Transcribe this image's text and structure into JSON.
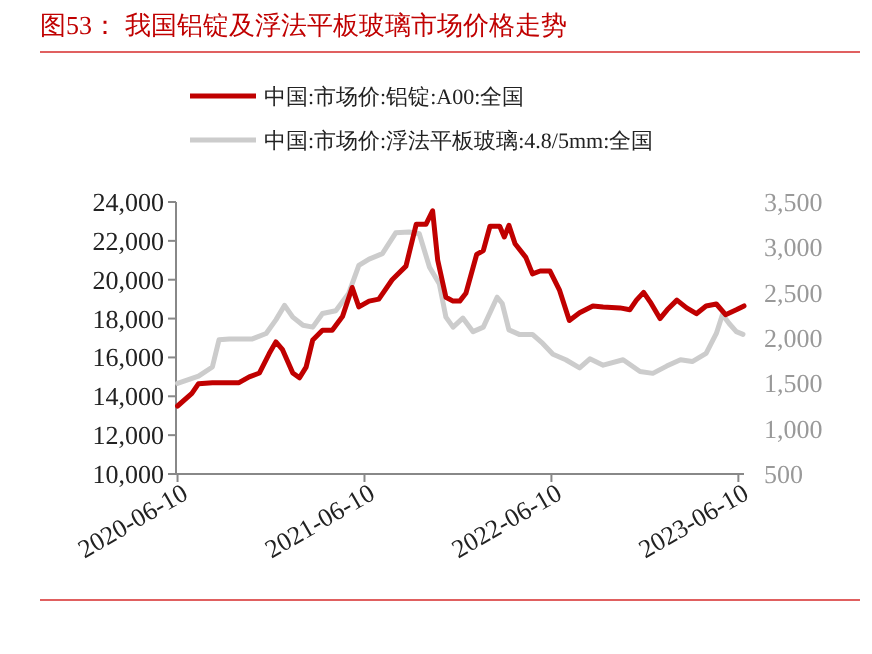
{
  "chart_data": {
    "type": "line",
    "title": "图53：  我国铝锭及浮法平板玻璃市场价格走势",
    "xlim": [
      "2020-06-07",
      "2023-06-21"
    ],
    "xticks": [
      "2020-06-10",
      "2021-06-10",
      "2022-06-10",
      "2023-06-10"
    ],
    "ylim": [
      10000,
      24000
    ],
    "yticks": [
      {
        "value": 10000,
        "label": "10,000"
      },
      {
        "value": 12000,
        "label": "12,000"
      },
      {
        "value": 14000,
        "label": "14,000"
      },
      {
        "value": 16000,
        "label": "16,000"
      },
      {
        "value": 18000,
        "label": "18,000"
      },
      {
        "value": 20000,
        "label": "20,000"
      },
      {
        "value": 22000,
        "label": "22,000"
      },
      {
        "value": 24000,
        "label": "24,000"
      }
    ],
    "y2lim": [
      500,
      3500
    ],
    "y2ticks": [
      500,
      {
        "value": 1000,
        "label": "1,000"
      },
      {
        "value": 1500,
        "label": "1,500"
      },
      {
        "value": 2000,
        "label": "2,000"
      },
      {
        "value": 2500,
        "label": "2,500"
      },
      {
        "value": 3000,
        "label": "3,000"
      },
      {
        "value": 3500,
        "label": "3,500"
      }
    ],
    "legend": "top",
    "grid": false,
    "series": [
      {
        "name": "中国:市场价:铝锭:A00:全国",
        "color": "#c00000",
        "x": [
          "2020-06-10",
          "2020-07-08",
          "2020-07-21",
          "2020-08-17",
          "2020-09-12",
          "2020-10-08",
          "2020-10-28",
          "2020-11-17",
          "2020-12-06",
          "2020-12-19",
          "2021-01-01",
          "2021-01-21",
          "2021-02-03",
          "2021-02-16",
          "2021-03-01",
          "2021-03-20",
          "2021-04-08",
          "2021-04-28",
          "2021-05-17",
          "2021-05-30",
          "2021-06-19",
          "2021-07-08",
          "2021-08-03",
          "2021-08-30",
          "2021-09-19",
          "2021-10-08",
          "2021-10-21",
          "2021-10-31",
          "2021-11-16",
          "2021-11-30",
          "2021-12-13",
          "2021-12-25",
          "2022-01-15",
          "2022-01-28",
          "2022-02-10",
          "2022-03-01",
          "2022-03-10",
          "2022-03-19",
          "2022-03-31",
          "2022-04-21",
          "2022-05-04",
          "2022-05-19",
          "2022-06-07",
          "2022-06-26",
          "2022-07-15",
          "2022-08-04",
          "2022-08-30",
          "2022-09-19",
          "2022-10-22",
          "2022-11-10",
          "2022-11-23",
          "2022-12-07",
          "2022-12-20",
          "2023-01-08",
          "2023-01-22",
          "2023-02-10",
          "2023-03-01",
          "2023-03-20",
          "2023-04-08",
          "2023-04-28",
          "2023-05-16",
          "2023-06-06",
          "2023-06-21"
        ],
        "values": [
          13500,
          14150,
          14650,
          14700,
          14700,
          14700,
          15000,
          15200,
          16200,
          16800,
          16400,
          15200,
          14950,
          15500,
          16900,
          17400,
          17400,
          18100,
          19600,
          18600,
          18900,
          19000,
          20000,
          20700,
          22850,
          22850,
          23550,
          21000,
          19100,
          18900,
          18900,
          19300,
          21300,
          21500,
          22750,
          22750,
          22200,
          22800,
          21850,
          21150,
          20300,
          20450,
          20450,
          19450,
          17900,
          18300,
          18650,
          18600,
          18550,
          18450,
          18950,
          19350,
          18850,
          18000,
          18450,
          18950,
          18550,
          18250,
          18650,
          18750,
          18200,
          18450,
          18650
        ]
      },
      {
        "name": "中国:市场价:浮法平板玻璃:4.8/5mm:全国",
        "color": "#cccccc",
        "axis": "y2",
        "x": [
          "2020-06-10",
          "2020-07-21",
          "2020-08-17",
          "2020-08-30",
          "2020-09-19",
          "2020-11-03",
          "2020-11-30",
          "2020-12-19",
          "2021-01-05",
          "2021-01-21",
          "2021-02-10",
          "2021-03-01",
          "2021-03-20",
          "2021-04-15",
          "2021-05-10",
          "2021-05-30",
          "2021-06-19",
          "2021-07-15",
          "2021-08-10",
          "2021-09-05",
          "2021-09-25",
          "2021-10-15",
          "2021-11-03",
          "2021-11-16",
          "2021-11-30",
          "2021-12-19",
          "2022-01-08",
          "2022-01-28",
          "2022-02-24",
          "2022-03-06",
          "2022-03-19",
          "2022-04-08",
          "2022-05-04",
          "2022-05-24",
          "2022-06-13",
          "2022-07-08",
          "2022-08-04",
          "2022-08-24",
          "2022-09-19",
          "2022-10-28",
          "2022-11-30",
          "2022-12-25",
          "2023-01-21",
          "2023-02-17",
          "2023-03-12",
          "2023-04-08",
          "2023-04-28",
          "2023-05-10",
          "2023-05-23",
          "2023-06-06",
          "2023-06-19"
        ],
        "values": [
          1500,
          1580,
          1680,
          1980,
          1990,
          1990,
          2050,
          2200,
          2360,
          2230,
          2140,
          2120,
          2270,
          2300,
          2490,
          2800,
          2870,
          2930,
          3160,
          3170,
          3150,
          2780,
          2600,
          2230,
          2120,
          2220,
          2070,
          2120,
          2450,
          2380,
          2090,
          2040,
          2040,
          1940,
          1820,
          1760,
          1670,
          1770,
          1700,
          1760,
          1630,
          1610,
          1690,
          1760,
          1740,
          1830,
          2050,
          2260,
          2160,
          2070,
          2040
        ]
      }
    ]
  }
}
